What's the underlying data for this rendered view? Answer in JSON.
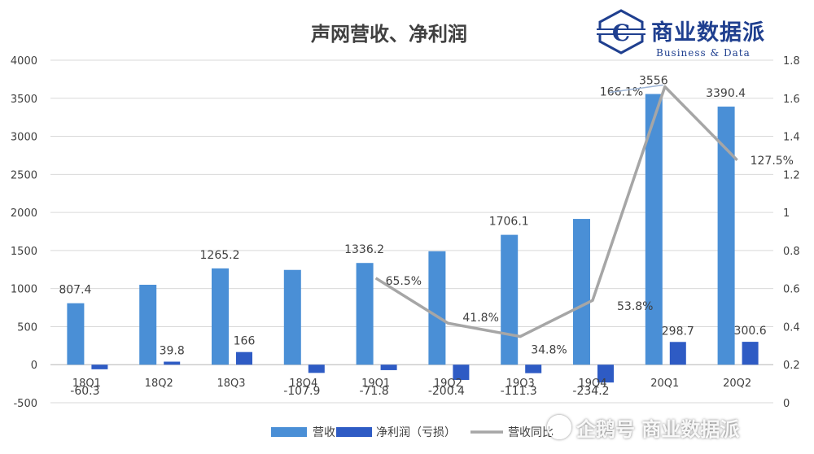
{
  "chart_data": {
    "type": "bar",
    "title": "声网营收、净利润",
    "categories": [
      "18Q1",
      "18Q2",
      "18Q3",
      "18Q4",
      "19Q1",
      "19Q2",
      "19Q3",
      "19Q4",
      "20Q1",
      "20Q2"
    ],
    "series": [
      {
        "name": "营收",
        "kind": "bar",
        "axis": "left",
        "color": "#4a8fd6",
        "values": [
          807.4,
          1050,
          1265.2,
          1245,
          1336.2,
          1490,
          1706.1,
          1915,
          3556,
          3390.4
        ],
        "labels": [
          "807.4",
          "",
          "1265.2",
          "",
          "1336.2",
          "",
          "1706.1",
          "",
          "3556",
          "3390.4"
        ]
      },
      {
        "name": "净利润（亏损）",
        "kind": "bar",
        "axis": "left",
        "color": "#2e5bc4",
        "values": [
          -60.3,
          39.8,
          166,
          -107.9,
          -71.8,
          -200.4,
          -111.3,
          -234.2,
          298.7,
          300.6
        ],
        "labels": [
          "-60.3",
          "39.8",
          "166",
          "-107.9",
          "-71.8",
          "-200.4",
          "-111.3",
          "-234.2",
          "298.7",
          "300.6"
        ]
      },
      {
        "name": "营收同比",
        "kind": "line",
        "axis": "right",
        "color": "#a6a6a6",
        "values": [
          null,
          null,
          null,
          null,
          0.655,
          0.418,
          0.348,
          0.538,
          1.661,
          1.275
        ],
        "labels": [
          "",
          "",
          "",
          "",
          "65.5%",
          "41.8%",
          "34.8%",
          "53.8%",
          "166.1%",
          "127.5%"
        ]
      }
    ],
    "y_left": {
      "min": -500,
      "max": 4000,
      "ticks": [
        "-500",
        "0",
        "500",
        "1000",
        "1500",
        "2000",
        "2500",
        "3000",
        "3500",
        "4000"
      ]
    },
    "y_right": {
      "min": 0,
      "max": 1.8,
      "ticks": [
        "0",
        "0.2",
        "0.4",
        "0.6",
        "0.8",
        "1",
        "1.2",
        "1.4",
        "1.6",
        "1.8"
      ]
    },
    "grid": true,
    "legend": "bottom"
  },
  "logo": {
    "cn": "商业数据派",
    "en": "Business & Data",
    "letter": "C"
  },
  "watermark": {
    "text": "企鹅号 商业数据派"
  }
}
